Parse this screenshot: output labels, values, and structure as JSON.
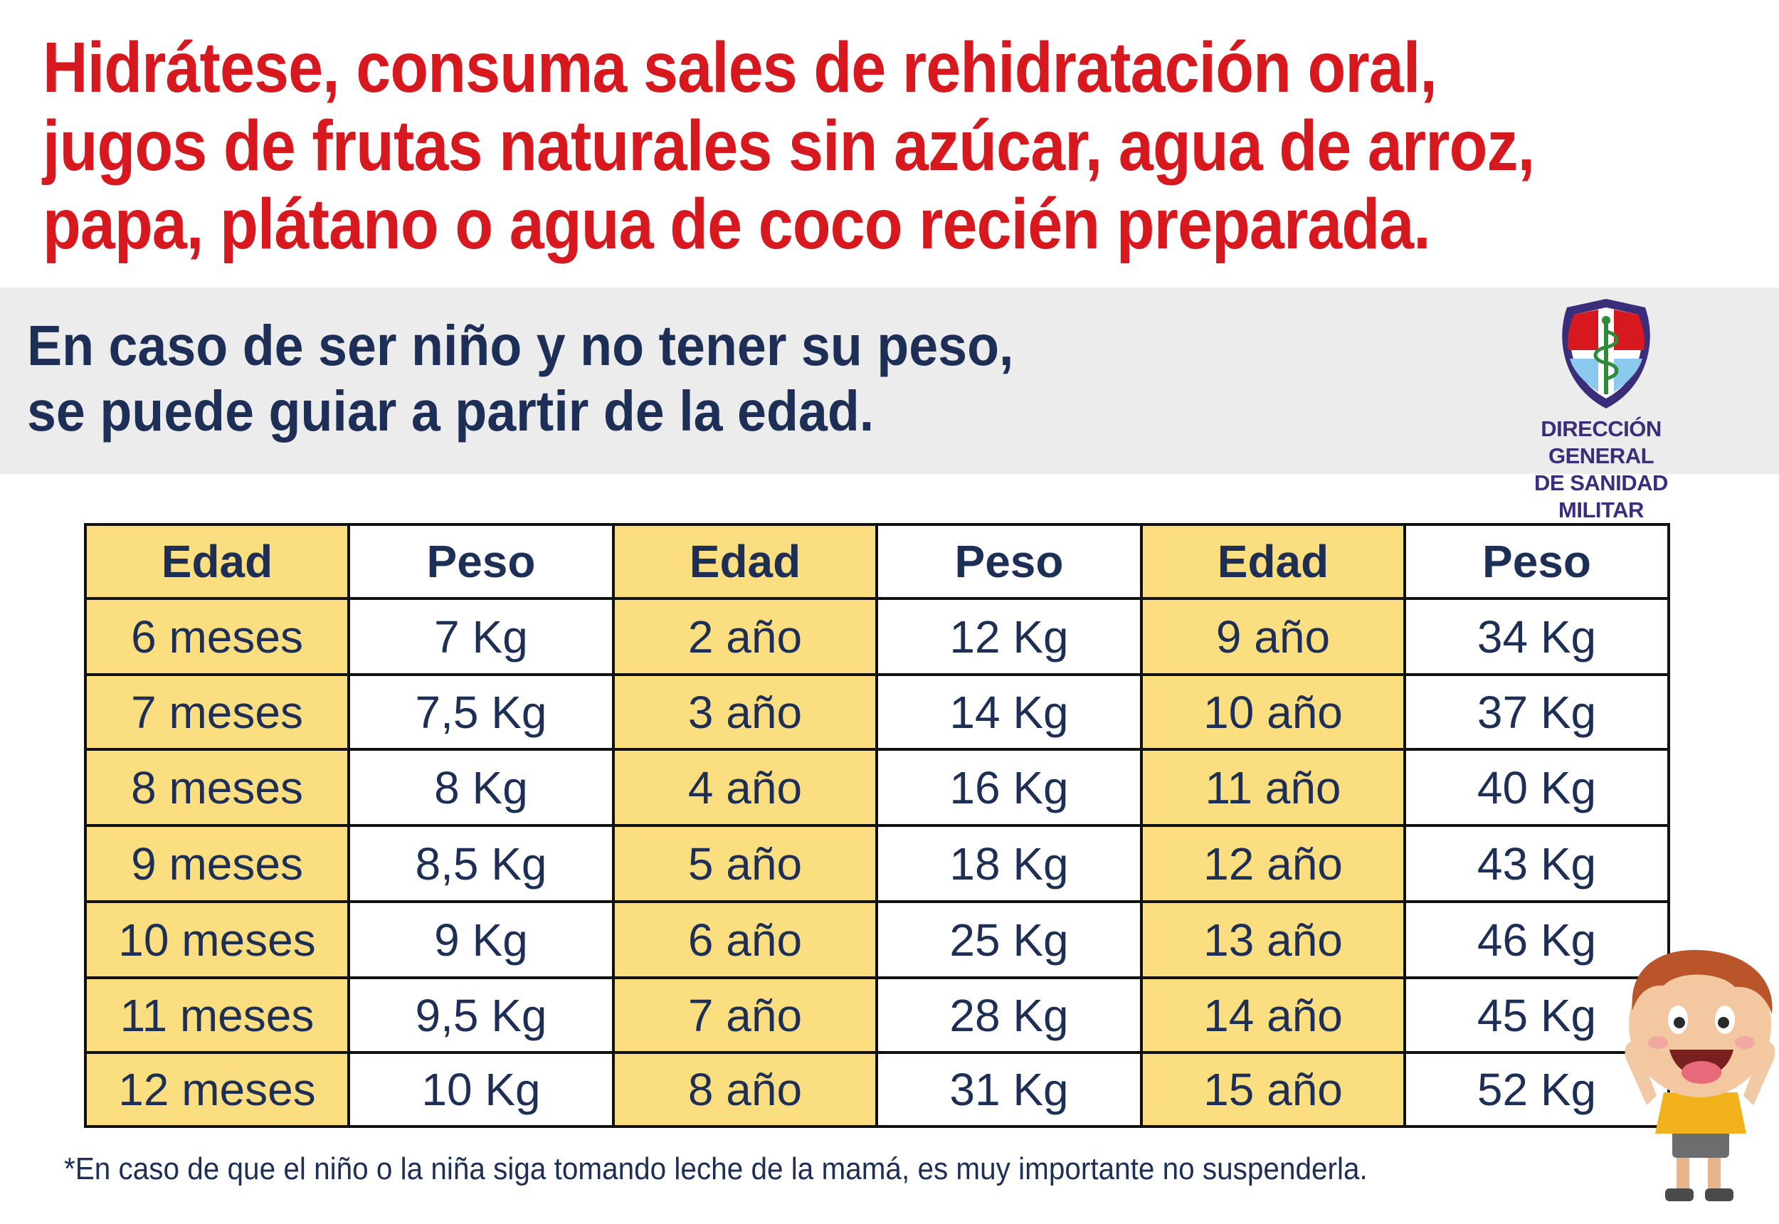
{
  "headline": "Hidrátese, consuma sales de rehidratación oral, jugos de frutas naturales sin azúcar, agua de arroz, papa, plátano o agua de coco recién preparada.",
  "subtitle": {
    "line1": "En caso de ser niño y no tener su peso,",
    "line2": "se puede guiar a partir de la edad."
  },
  "logo": {
    "line1": "DIRECCIÓN GENERAL",
    "line2": "DE SANIDAD MILITAR"
  },
  "table": {
    "headers": [
      "Edad",
      "Peso",
      "Edad",
      "Peso",
      "Edad",
      "Peso"
    ],
    "rows": [
      [
        "6 meses",
        "7 Kg",
        "2 año",
        "12 Kg",
        "9 año",
        "34 Kg"
      ],
      [
        "7 meses",
        "7,5 Kg",
        "3 año",
        "14 Kg",
        "10 año",
        "37 Kg"
      ],
      [
        "8 meses",
        "8 Kg",
        "4 año",
        "16 Kg",
        "11 año",
        "40 Kg"
      ],
      [
        "9 meses",
        "8,5 Kg",
        "5 año",
        "18 Kg",
        "12 año",
        "43 Kg"
      ],
      [
        "10 meses",
        "9 Kg",
        "6 año",
        "25 Kg",
        "13 año",
        "46 Kg"
      ],
      [
        "11 meses",
        "9,5 Kg",
        "7 año",
        "28 Kg",
        "14 año",
        "45 Kg"
      ],
      [
        "12 meses",
        "10 Kg",
        "8 año",
        "31 Kg",
        "15 año",
        "52 Kg"
      ]
    ]
  },
  "footnote": "*En caso de que el niño o la niña siga tomando leche de la mamá, es muy importante no suspenderla.",
  "colors": {
    "headline": "#d7191f",
    "text": "#1d2f57",
    "age_column": "#fbde7f",
    "band": "#ececec"
  },
  "icons": {
    "logo": "military-health-shield-icon",
    "character": "cartoon-boy-illustration"
  }
}
